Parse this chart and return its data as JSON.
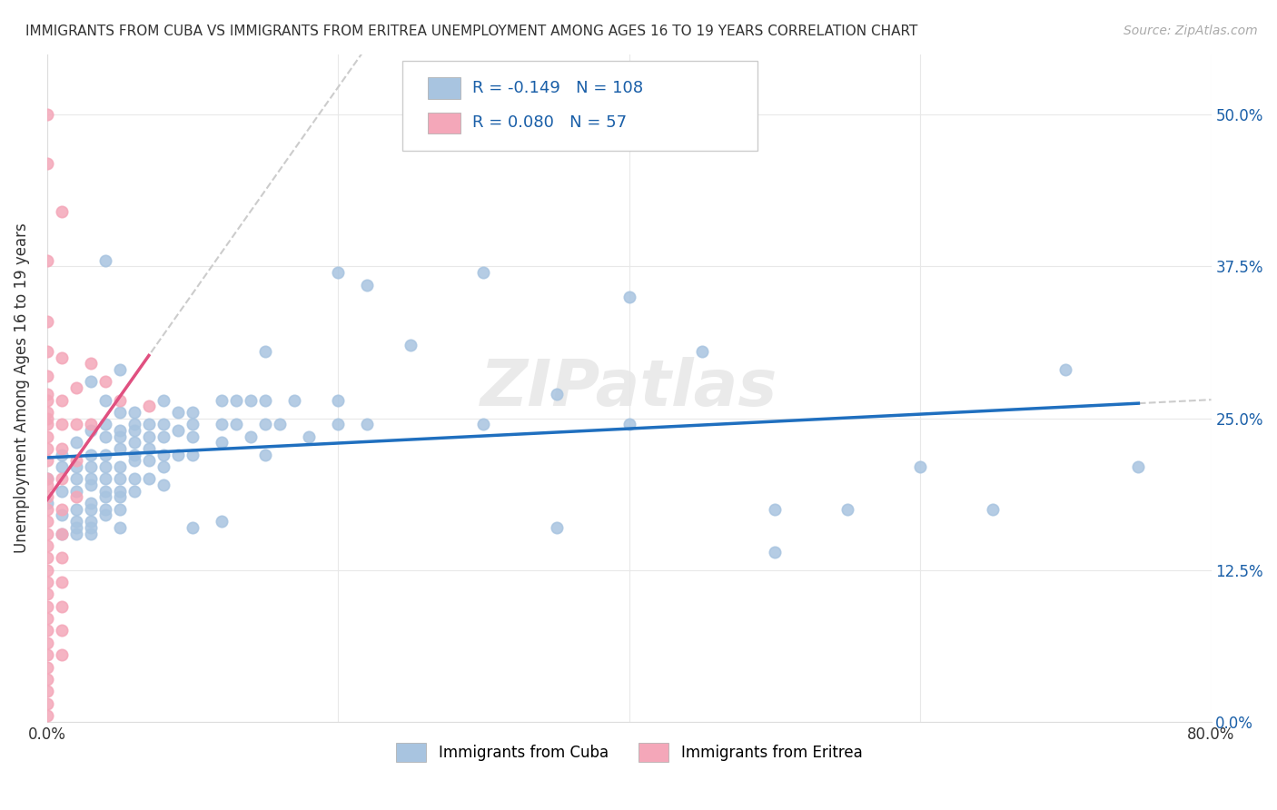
{
  "title": "IMMIGRANTS FROM CUBA VS IMMIGRANTS FROM ERITREA UNEMPLOYMENT AMONG AGES 16 TO 19 YEARS CORRELATION CHART",
  "source": "Source: ZipAtlas.com",
  "ylabel": "Unemployment Among Ages 16 to 19 years",
  "xlim": [
    0.0,
    0.8
  ],
  "ylim": [
    0.0,
    0.55
  ],
  "yticks": [
    0.0,
    0.125,
    0.25,
    0.375,
    0.5
  ],
  "ytick_labels": [
    "0.0%",
    "12.5%",
    "25.0%",
    "37.5%",
    "50.0%"
  ],
  "xticks": [
    0.0,
    0.2,
    0.4,
    0.6,
    0.8
  ],
  "xtick_labels": [
    "0.0%",
    "",
    "",
    "",
    "80.0%"
  ],
  "cuba_color": "#a8c4e0",
  "eritrea_color": "#f4a7b9",
  "cuba_R": -0.149,
  "cuba_N": 108,
  "eritrea_R": 0.08,
  "eritrea_N": 57,
  "trend_color_cuba": "#1f6fbf",
  "trend_color_eritrea": "#e05080",
  "legend_R_color": "#1a5fa8",
  "watermark": "ZIPatlas",
  "cuba_scatter": [
    [
      0.0,
      0.2
    ],
    [
      0.0,
      0.18
    ],
    [
      0.01,
      0.22
    ],
    [
      0.01,
      0.19
    ],
    [
      0.01,
      0.21
    ],
    [
      0.01,
      0.17
    ],
    [
      0.01,
      0.155
    ],
    [
      0.02,
      0.23
    ],
    [
      0.02,
      0.21
    ],
    [
      0.02,
      0.2
    ],
    [
      0.02,
      0.19
    ],
    [
      0.02,
      0.175
    ],
    [
      0.02,
      0.165
    ],
    [
      0.02,
      0.16
    ],
    [
      0.02,
      0.155
    ],
    [
      0.03,
      0.28
    ],
    [
      0.03,
      0.24
    ],
    [
      0.03,
      0.22
    ],
    [
      0.03,
      0.21
    ],
    [
      0.03,
      0.2
    ],
    [
      0.03,
      0.195
    ],
    [
      0.03,
      0.18
    ],
    [
      0.03,
      0.175
    ],
    [
      0.03,
      0.165
    ],
    [
      0.03,
      0.16
    ],
    [
      0.03,
      0.155
    ],
    [
      0.04,
      0.38
    ],
    [
      0.04,
      0.265
    ],
    [
      0.04,
      0.245
    ],
    [
      0.04,
      0.235
    ],
    [
      0.04,
      0.22
    ],
    [
      0.04,
      0.21
    ],
    [
      0.04,
      0.2
    ],
    [
      0.04,
      0.19
    ],
    [
      0.04,
      0.185
    ],
    [
      0.04,
      0.175
    ],
    [
      0.04,
      0.17
    ],
    [
      0.05,
      0.29
    ],
    [
      0.05,
      0.255
    ],
    [
      0.05,
      0.24
    ],
    [
      0.05,
      0.235
    ],
    [
      0.05,
      0.225
    ],
    [
      0.05,
      0.21
    ],
    [
      0.05,
      0.2
    ],
    [
      0.05,
      0.19
    ],
    [
      0.05,
      0.185
    ],
    [
      0.05,
      0.175
    ],
    [
      0.05,
      0.16
    ],
    [
      0.06,
      0.255
    ],
    [
      0.06,
      0.245
    ],
    [
      0.06,
      0.24
    ],
    [
      0.06,
      0.23
    ],
    [
      0.06,
      0.22
    ],
    [
      0.06,
      0.215
    ],
    [
      0.06,
      0.2
    ],
    [
      0.06,
      0.19
    ],
    [
      0.07,
      0.245
    ],
    [
      0.07,
      0.235
    ],
    [
      0.07,
      0.225
    ],
    [
      0.07,
      0.215
    ],
    [
      0.07,
      0.2
    ],
    [
      0.08,
      0.265
    ],
    [
      0.08,
      0.245
    ],
    [
      0.08,
      0.235
    ],
    [
      0.08,
      0.22
    ],
    [
      0.08,
      0.21
    ],
    [
      0.08,
      0.195
    ],
    [
      0.09,
      0.255
    ],
    [
      0.09,
      0.24
    ],
    [
      0.09,
      0.22
    ],
    [
      0.1,
      0.255
    ],
    [
      0.1,
      0.245
    ],
    [
      0.1,
      0.235
    ],
    [
      0.1,
      0.22
    ],
    [
      0.1,
      0.16
    ],
    [
      0.12,
      0.265
    ],
    [
      0.12,
      0.245
    ],
    [
      0.12,
      0.23
    ],
    [
      0.12,
      0.165
    ],
    [
      0.13,
      0.265
    ],
    [
      0.13,
      0.245
    ],
    [
      0.14,
      0.265
    ],
    [
      0.14,
      0.235
    ],
    [
      0.15,
      0.305
    ],
    [
      0.15,
      0.265
    ],
    [
      0.15,
      0.245
    ],
    [
      0.15,
      0.22
    ],
    [
      0.16,
      0.245
    ],
    [
      0.17,
      0.265
    ],
    [
      0.18,
      0.235
    ],
    [
      0.2,
      0.37
    ],
    [
      0.2,
      0.265
    ],
    [
      0.2,
      0.245
    ],
    [
      0.22,
      0.36
    ],
    [
      0.22,
      0.245
    ],
    [
      0.25,
      0.31
    ],
    [
      0.3,
      0.37
    ],
    [
      0.3,
      0.245
    ],
    [
      0.35,
      0.27
    ],
    [
      0.35,
      0.16
    ],
    [
      0.4,
      0.35
    ],
    [
      0.4,
      0.245
    ],
    [
      0.45,
      0.305
    ],
    [
      0.5,
      0.175
    ],
    [
      0.5,
      0.14
    ],
    [
      0.55,
      0.175
    ],
    [
      0.6,
      0.21
    ],
    [
      0.65,
      0.175
    ],
    [
      0.7,
      0.29
    ],
    [
      0.75,
      0.21
    ]
  ],
  "eritrea_scatter": [
    [
      0.0,
      0.5
    ],
    [
      0.0,
      0.46
    ],
    [
      0.0,
      0.38
    ],
    [
      0.0,
      0.33
    ],
    [
      0.0,
      0.305
    ],
    [
      0.0,
      0.285
    ],
    [
      0.0,
      0.27
    ],
    [
      0.0,
      0.265
    ],
    [
      0.0,
      0.255
    ],
    [
      0.0,
      0.25
    ],
    [
      0.0,
      0.245
    ],
    [
      0.0,
      0.235
    ],
    [
      0.0,
      0.225
    ],
    [
      0.0,
      0.215
    ],
    [
      0.0,
      0.2
    ],
    [
      0.0,
      0.195
    ],
    [
      0.0,
      0.185
    ],
    [
      0.0,
      0.175
    ],
    [
      0.0,
      0.165
    ],
    [
      0.0,
      0.155
    ],
    [
      0.0,
      0.145
    ],
    [
      0.0,
      0.135
    ],
    [
      0.0,
      0.125
    ],
    [
      0.0,
      0.115
    ],
    [
      0.0,
      0.105
    ],
    [
      0.0,
      0.095
    ],
    [
      0.0,
      0.085
    ],
    [
      0.0,
      0.075
    ],
    [
      0.0,
      0.065
    ],
    [
      0.0,
      0.055
    ],
    [
      0.0,
      0.045
    ],
    [
      0.0,
      0.035
    ],
    [
      0.0,
      0.025
    ],
    [
      0.0,
      0.015
    ],
    [
      0.0,
      0.005
    ],
    [
      0.01,
      0.42
    ],
    [
      0.01,
      0.3
    ],
    [
      0.01,
      0.265
    ],
    [
      0.01,
      0.245
    ],
    [
      0.01,
      0.225
    ],
    [
      0.01,
      0.2
    ],
    [
      0.01,
      0.175
    ],
    [
      0.01,
      0.155
    ],
    [
      0.01,
      0.135
    ],
    [
      0.01,
      0.115
    ],
    [
      0.01,
      0.095
    ],
    [
      0.01,
      0.075
    ],
    [
      0.01,
      0.055
    ],
    [
      0.02,
      0.275
    ],
    [
      0.02,
      0.245
    ],
    [
      0.02,
      0.215
    ],
    [
      0.02,
      0.185
    ],
    [
      0.03,
      0.295
    ],
    [
      0.03,
      0.245
    ],
    [
      0.04,
      0.28
    ],
    [
      0.05,
      0.265
    ],
    [
      0.07,
      0.26
    ]
  ]
}
